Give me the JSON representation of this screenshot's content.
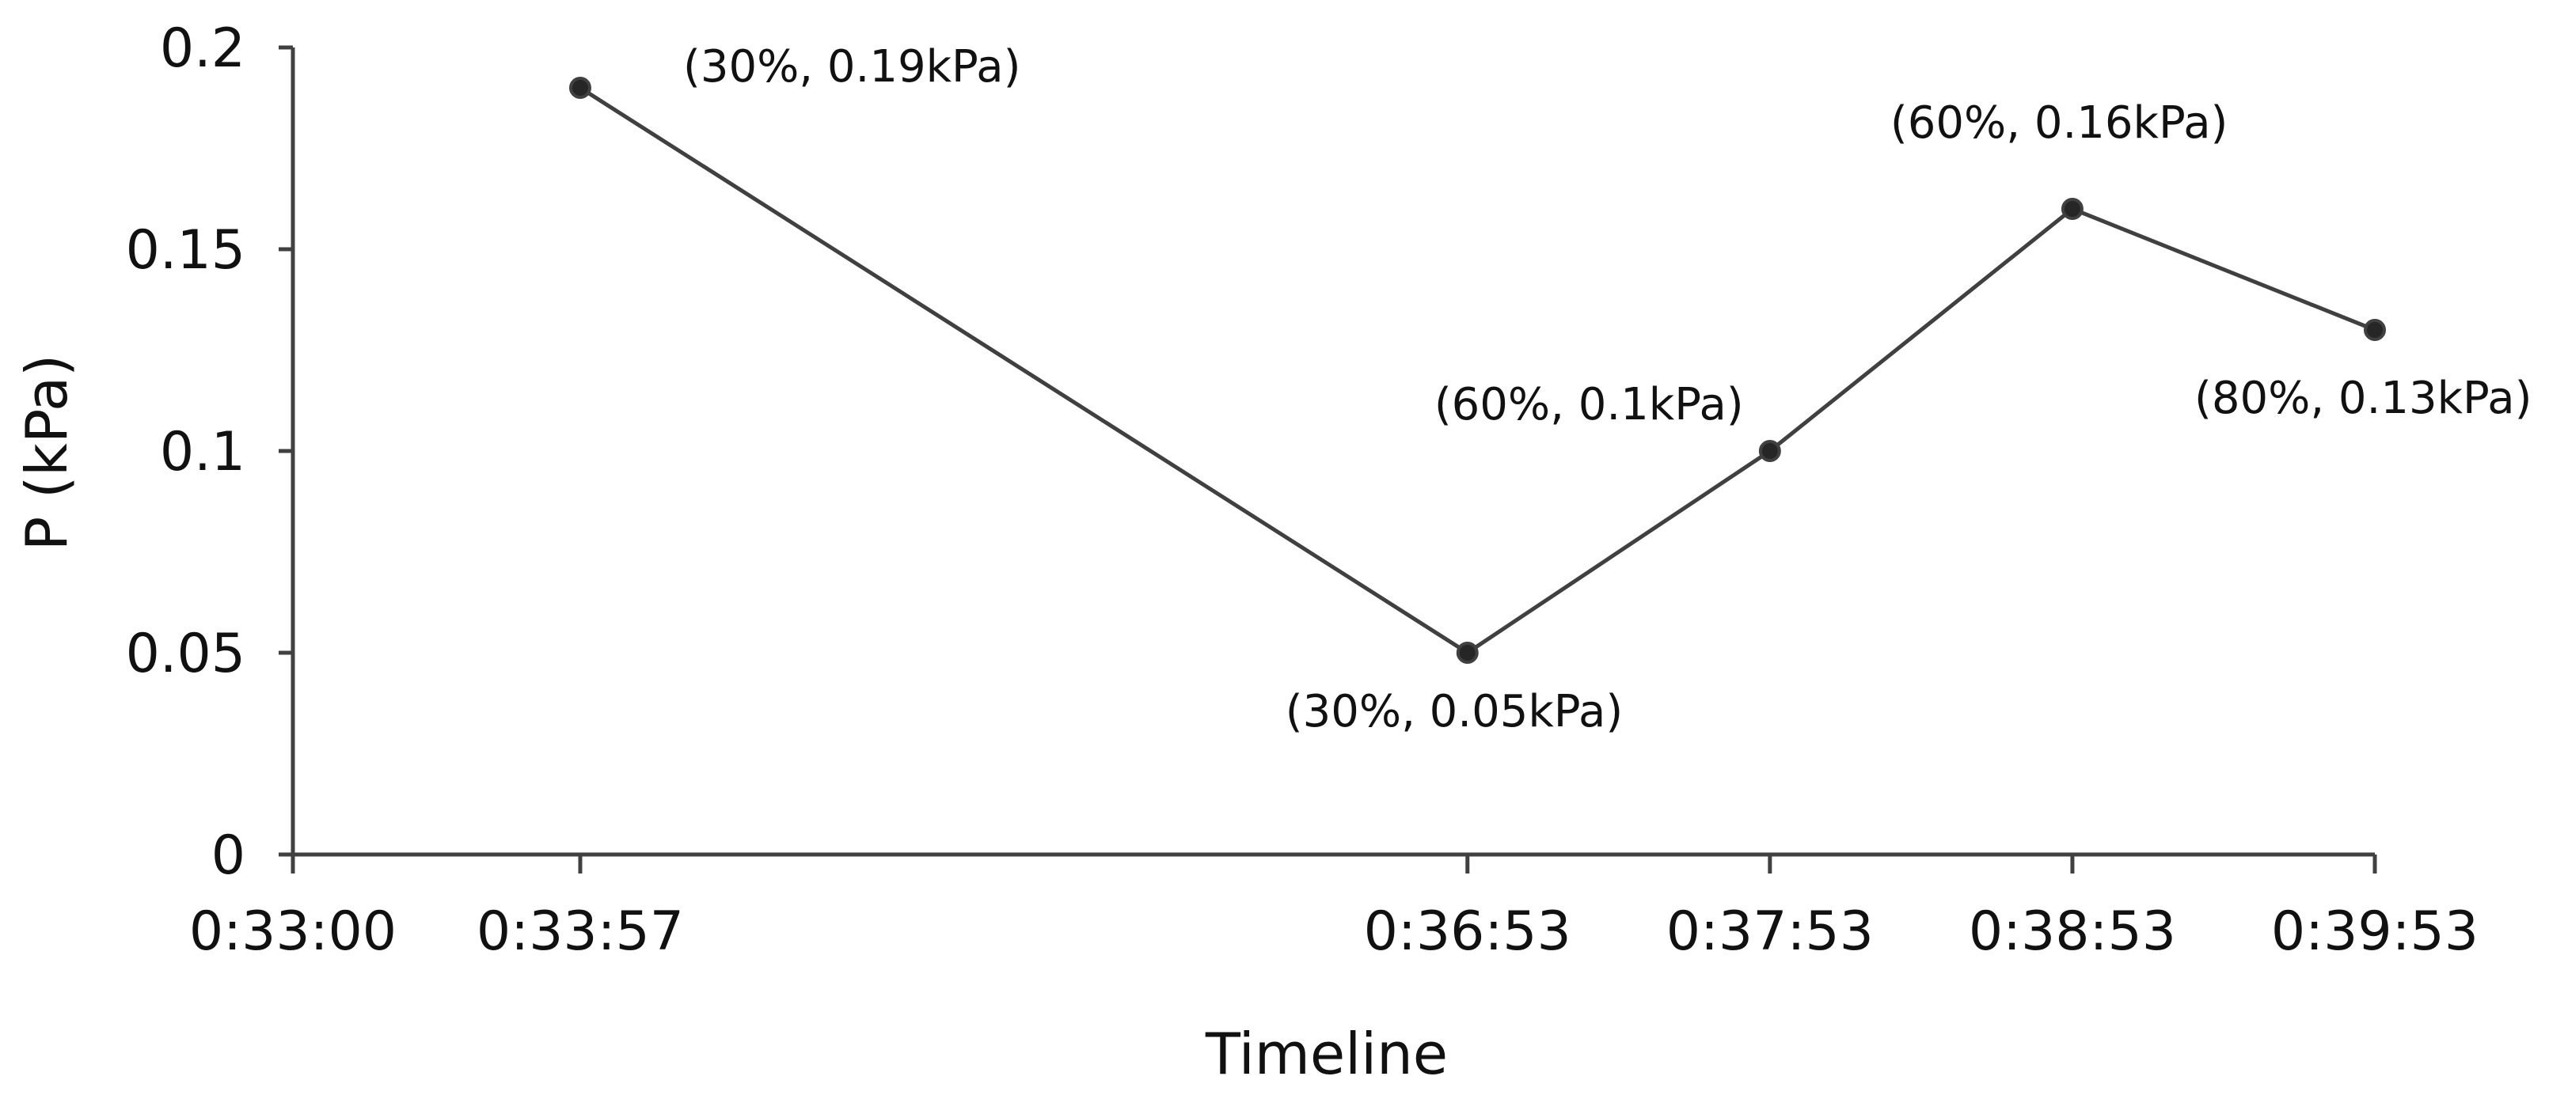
{
  "chart_data": {
    "type": "line",
    "title": "",
    "xlabel": "Timeline",
    "ylabel": "P (kPa)",
    "x_ticks": [
      "0:33:00",
      "0:33:57",
      "0:36:53",
      "0:37:53",
      "0:38:53",
      "0:39:53"
    ],
    "y_ticks": [
      "0",
      "0.05",
      "0.1",
      "0.15",
      "0.2"
    ],
    "ylim": [
      0,
      0.2
    ],
    "xlim": [
      "0:33:00",
      "0:39:53"
    ],
    "grid": false,
    "legend": "none",
    "line_color": "#404040",
    "marker_color": "#262626",
    "points": [
      {
        "x": "0:33:57",
        "y": 0.19,
        "label": "(30%, 0.19kPa)"
      },
      {
        "x": "0:36:53",
        "y": 0.05,
        "label": "(30%, 0.05kPa)"
      },
      {
        "x": "0:37:53",
        "y": 0.1,
        "label": "(60%, 0.1kPa)"
      },
      {
        "x": "0:38:53",
        "y": 0.16,
        "label": "(60%, 0.16kPa)"
      },
      {
        "x": "0:39:53",
        "y": 0.13,
        "label": "(80%, 0.13kPa)"
      }
    ]
  }
}
